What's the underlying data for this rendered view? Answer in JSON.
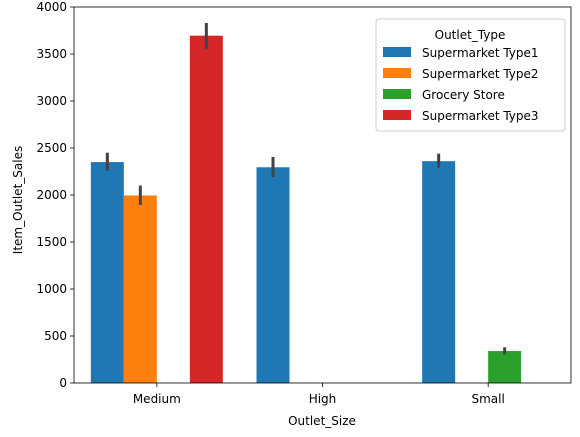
{
  "chart_data": {
    "type": "bar",
    "title": "",
    "xlabel": "Outlet_Size",
    "ylabel": "Item_Outlet_Sales",
    "ylim": [
      0,
      4000
    ],
    "yticks": [
      0,
      500,
      1000,
      1500,
      2000,
      2500,
      3000,
      3500,
      4000
    ],
    "categories": [
      "Medium",
      "High",
      "Small"
    ],
    "grid": false,
    "legend": {
      "title": "Outlet_Type",
      "placement": "top-right"
    },
    "series": [
      {
        "name": "Supermarket Type1",
        "color": "#1f77b4",
        "values": [
          2350,
          2295,
          2360
        ],
        "err_low": [
          2260,
          2190,
          2290
        ],
        "err_high": [
          2450,
          2405,
          2440
        ]
      },
      {
        "name": "Supermarket Type2",
        "color": "#ff7f0e",
        "values": [
          1995,
          null,
          null
        ],
        "err_low": [
          1895,
          null,
          null
        ],
        "err_high": [
          2100,
          null,
          null
        ]
      },
      {
        "name": "Grocery Store",
        "color": "#2ca02c",
        "values": [
          null,
          null,
          340
        ],
        "err_low": [
          null,
          null,
          305
        ],
        "err_high": [
          null,
          null,
          380
        ]
      },
      {
        "name": "Supermarket Type3",
        "color": "#d62728",
        "values": [
          3695,
          null,
          null
        ],
        "err_low": [
          3550,
          null,
          null
        ],
        "err_high": [
          3830,
          null,
          null
        ]
      }
    ]
  }
}
